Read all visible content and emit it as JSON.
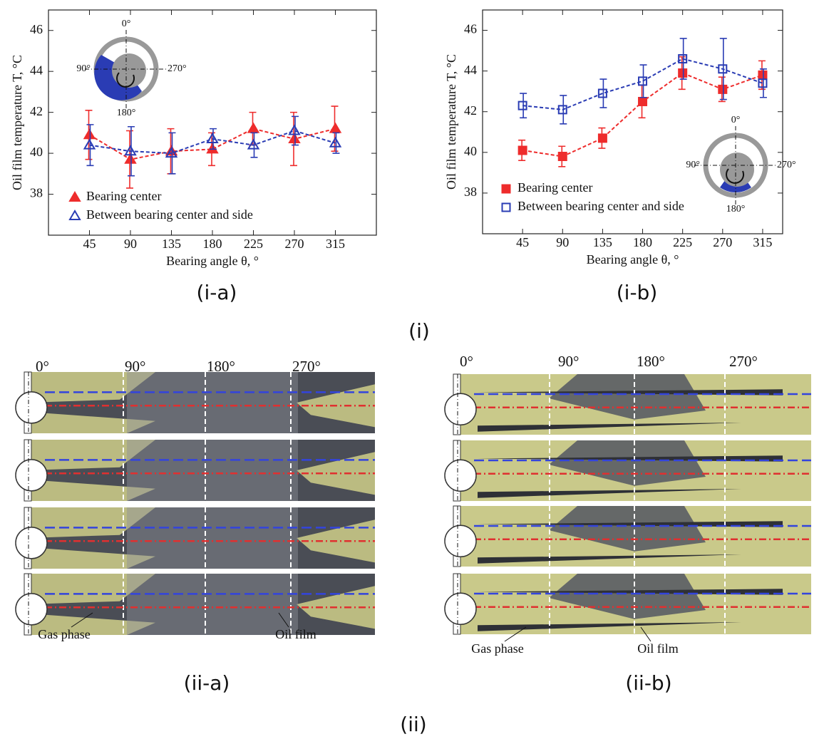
{
  "chart_data": [
    {
      "type": "line",
      "caption": "(i-a)",
      "x_label": "Bearing angle θ, °",
      "y_label": "Oil film temperature T, °C",
      "x": [
        45,
        90,
        135,
        180,
        225,
        270,
        315
      ],
      "xlim": [
        0,
        360
      ],
      "xticks": [
        45,
        90,
        135,
        180,
        225,
        270,
        315
      ],
      "ylim": [
        36,
        47
      ],
      "yticks": [
        38,
        40,
        42,
        44,
        46
      ],
      "legend": "lower left",
      "inset_labels": [
        "0°",
        "90°",
        "180°",
        "270°"
      ],
      "series": [
        {
          "name": "Bearing center",
          "color": "#ee2c2c",
          "marker": "triangle",
          "filled": true,
          "values": [
            40.9,
            39.7,
            40.1,
            40.2,
            41.2,
            40.7,
            41.2
          ],
          "errors": [
            1.2,
            1.4,
            1.1,
            0.8,
            0.8,
            1.3,
            1.1
          ]
        },
        {
          "name": "Between bearing center and side",
          "color": "#2a3cb4",
          "marker": "triangle",
          "filled": false,
          "values": [
            40.4,
            40.1,
            40.0,
            40.7,
            40.4,
            41.1,
            40.5
          ],
          "errors": [
            1.0,
            1.2,
            1.0,
            0.5,
            0.6,
            0.7,
            0.5
          ]
        }
      ]
    },
    {
      "type": "line",
      "caption": "(i-b)",
      "x_label": "Bearing angle θ, °",
      "y_label": "Oil film temperature T, °C",
      "x": [
        45,
        90,
        135,
        180,
        225,
        270,
        315
      ],
      "xlim": [
        0,
        337.5
      ],
      "xticks": [
        45,
        90,
        135,
        180,
        225,
        270,
        315
      ],
      "ylim": [
        36,
        47
      ],
      "yticks": [
        38,
        40,
        42,
        44,
        46
      ],
      "legend": "lower left",
      "inset_labels": [
        "0°",
        "90°",
        "180°",
        "270°"
      ],
      "series": [
        {
          "name": "Bearing center",
          "color": "#ee2c2c",
          "marker": "square",
          "filled": true,
          "values": [
            40.1,
            39.8,
            40.7,
            42.5,
            43.9,
            43.1,
            43.8
          ],
          "errors": [
            0.5,
            0.5,
            0.5,
            0.8,
            0.8,
            0.6,
            0.7
          ]
        },
        {
          "name": "Between bearing center and side",
          "color": "#2a3cb4",
          "marker": "square",
          "filled": false,
          "values": [
            42.3,
            42.1,
            42.9,
            43.5,
            44.6,
            44.1,
            43.4
          ],
          "errors": [
            0.6,
            0.7,
            0.7,
            0.8,
            1.0,
            1.5,
            0.7
          ]
        }
      ]
    }
  ],
  "figure": {
    "group_i": "(i)",
    "group_ii": "(ii)"
  },
  "photos": [
    {
      "caption": "(ii-a)",
      "angle_labels": [
        "0°",
        "90°",
        "180°",
        "270°"
      ],
      "gas_label": "Gas phase",
      "oil_label": "Oil film"
    },
    {
      "caption": "(ii-b)",
      "angle_labels": [
        "0°",
        "90°",
        "180°",
        "270°"
      ],
      "gas_label": "Gas phase",
      "oil_label": "Oil film"
    }
  ]
}
